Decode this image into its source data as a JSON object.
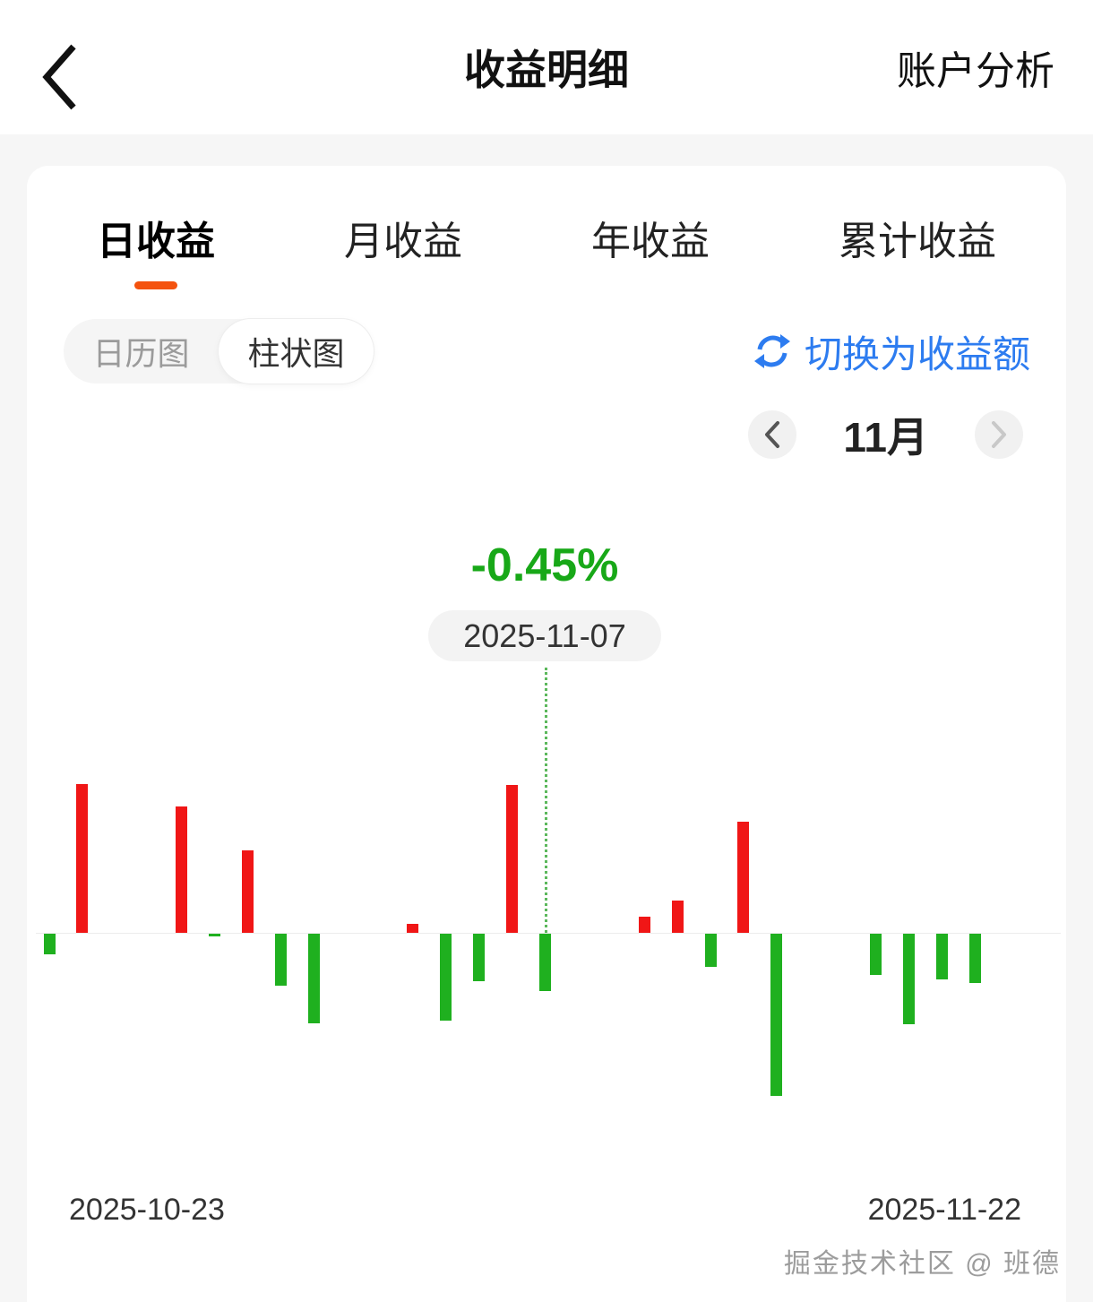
{
  "header": {
    "title": "收益明细",
    "action_label": "账户分析"
  },
  "tabs": [
    {
      "label": "日收益",
      "active": true
    },
    {
      "label": "月收益",
      "active": false
    },
    {
      "label": "年收益",
      "active": false
    },
    {
      "label": "累计收益",
      "active": false
    }
  ],
  "view_toggle": {
    "options": [
      {
        "label": "日历图",
        "selected": false
      },
      {
        "label": "柱状图",
        "selected": true
      }
    ]
  },
  "switch_link": {
    "label": "切换为收益额"
  },
  "month_nav": {
    "label": "11月",
    "prev_enabled": true,
    "next_enabled": false
  },
  "tooltip": {
    "value": "-0.45%",
    "date": "2025-11-07"
  },
  "axis": {
    "start_label": "2025-10-23",
    "end_label": "2025-11-22"
  },
  "watermark": "掘金技术社区 @ 班德",
  "colors": {
    "positive_red": "#f01616",
    "negative_green": "#1fb01f",
    "pct_green": "#18a818",
    "accent_orange": "#f4520e",
    "link_blue": "#2d7cf0"
  },
  "chart_data": {
    "type": "bar",
    "unit": "percent",
    "x_range": [
      "2025-10-23",
      "2025-11-22"
    ],
    "highlight": {
      "date": "2025-11-07",
      "label": "-0.45%"
    },
    "days": [
      {
        "date": "2025-10-23",
        "pct": -0.16
      },
      {
        "date": "2025-10-24",
        "pct": 1.17
      },
      {
        "date": "2025-10-25",
        "pct": null
      },
      {
        "date": "2025-10-26",
        "pct": null
      },
      {
        "date": "2025-10-27",
        "pct": 0.99
      },
      {
        "date": "2025-10-28",
        "pct": -0.02
      },
      {
        "date": "2025-10-29",
        "pct": 0.65
      },
      {
        "date": "2025-10-30",
        "pct": -0.41
      },
      {
        "date": "2025-10-31",
        "pct": -0.7
      },
      {
        "date": "2025-11-01",
        "pct": null
      },
      {
        "date": "2025-11-02",
        "pct": null
      },
      {
        "date": "2025-11-03",
        "pct": 0.07
      },
      {
        "date": "2025-11-04",
        "pct": -0.68
      },
      {
        "date": "2025-11-05",
        "pct": -0.37
      },
      {
        "date": "2025-11-06",
        "pct": 1.16
      },
      {
        "date": "2025-11-07",
        "pct": -0.45
      },
      {
        "date": "2025-11-08",
        "pct": null
      },
      {
        "date": "2025-11-09",
        "pct": null
      },
      {
        "date": "2025-11-10",
        "pct": 0.13
      },
      {
        "date": "2025-11-11",
        "pct": 0.25
      },
      {
        "date": "2025-11-12",
        "pct": -0.26
      },
      {
        "date": "2025-11-13",
        "pct": 0.87
      },
      {
        "date": "2025-11-14",
        "pct": -1.27
      },
      {
        "date": "2025-11-15",
        "pct": null
      },
      {
        "date": "2025-11-16",
        "pct": null
      },
      {
        "date": "2025-11-17",
        "pct": -0.32
      },
      {
        "date": "2025-11-18",
        "pct": -0.71
      },
      {
        "date": "2025-11-19",
        "pct": -0.36
      },
      {
        "date": "2025-11-20",
        "pct": -0.39
      },
      {
        "date": "2025-11-21",
        "pct": null
      },
      {
        "date": "2025-11-22",
        "pct": null
      }
    ]
  }
}
